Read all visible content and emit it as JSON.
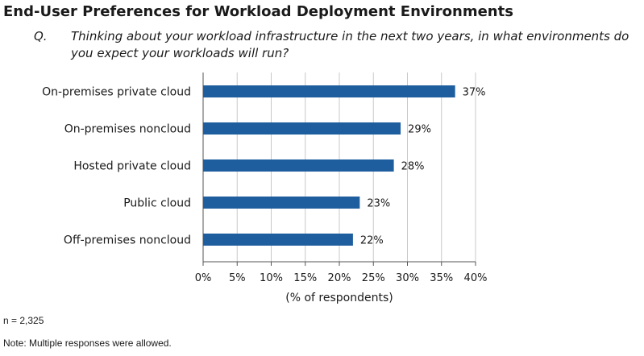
{
  "title": "End-User Preferences for Workload Deployment Environments",
  "question_label": "Q.",
  "question": "Thinking about your workload infrastructure in the next two years, in what environments do you expect your workloads will run?",
  "colors": {
    "bar": "#1f5e9e",
    "grid": "#c8c8c8",
    "axis": "#555555",
    "text": "#1a1a1a"
  },
  "chart_data": {
    "type": "bar",
    "orientation": "horizontal",
    "categories": [
      "On-premises private cloud",
      "On-premises noncloud",
      "Hosted private cloud",
      "Public cloud",
      "Off-premises noncloud"
    ],
    "values": [
      37,
      29,
      28,
      23,
      22
    ],
    "value_labels": [
      "37%",
      "29%",
      "28%",
      "23%",
      "22%"
    ],
    "xticks": [
      "0%",
      "5%",
      "10%",
      "15%",
      "20%",
      "25%",
      "30%",
      "35%",
      "40%"
    ],
    "xlabel": "(% of respondents)",
    "xlim": [
      0,
      40
    ],
    "grid": "vertical"
  },
  "footnotes": {
    "n": "n = 2,325",
    "multiple": "Note: Multiple responses were allowed."
  }
}
